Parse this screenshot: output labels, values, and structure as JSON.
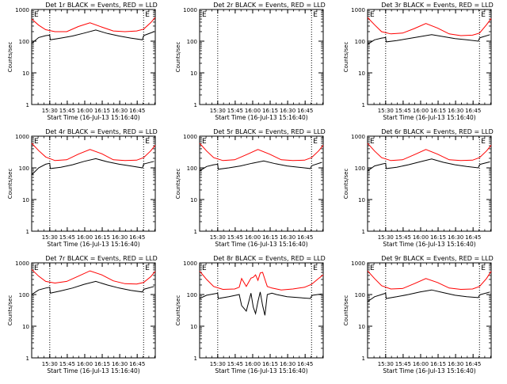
{
  "chart_data": [
    {
      "type": "line",
      "title": "Det 1r BLACK = Events, RED = LLD",
      "xlabel": "Start Time (16-Jul-13 15:16:40)",
      "ylabel": "Counts/sec",
      "ylim": [
        1,
        1000
      ],
      "yscale": "log",
      "y_ticks": [
        "1",
        "10",
        "100",
        "1000"
      ],
      "x_ticks": [
        "15:30",
        "15:45",
        "16:00",
        "16:15",
        "16:30",
        "16:45"
      ],
      "has_data": true,
      "markers": [
        "E",
        "E"
      ],
      "vlines_min": [
        15.5,
        96
      ],
      "series": [
        {
          "name": "BLACK = Events",
          "color": "#000000",
          "x": [
            0,
            6,
            12,
            15.5,
            16,
            25,
            35,
            45,
            55,
            65,
            75,
            85,
            95,
            96,
            97,
            105
          ],
          "y": [
            85,
            130,
            150,
            155,
            110,
            125,
            145,
            180,
            225,
            175,
            145,
            125,
            110,
            150,
            155,
            200
          ]
        },
        {
          "name": "RED = LLD",
          "color": "#ff0000",
          "x": [
            0,
            6,
            12,
            20,
            30,
            40,
            50,
            60,
            70,
            80,
            90,
            96,
            102,
            106
          ],
          "y": [
            500,
            320,
            230,
            200,
            200,
            290,
            380,
            280,
            210,
            200,
            210,
            240,
            380,
            560
          ]
        }
      ]
    },
    {
      "type": "line",
      "title": "Det 2r BLACK = Events, RED = LLD",
      "xlabel": "Start Time (16-Jul-13 15:16:40)",
      "ylabel": "Counts/sec",
      "ylim": [
        1,
        1000
      ],
      "yscale": "log",
      "y_ticks": [
        "1",
        "10",
        "100",
        "1000"
      ],
      "x_ticks": [
        "15:30",
        "15:45",
        "16:00",
        "16:15",
        "16:30",
        "16:45"
      ],
      "has_data": false,
      "markers": [
        "E",
        "E"
      ],
      "vlines_min": [
        15.5,
        96
      ],
      "series": []
    },
    {
      "type": "line",
      "title": "Det 3r BLACK = Events, RED = LLD",
      "xlabel": "Start Time (16-Jul-13 15:16:40)",
      "ylabel": "Counts/sec",
      "ylim": [
        1,
        1000
      ],
      "yscale": "log",
      "y_ticks": [
        "1",
        "10",
        "100",
        "1000"
      ],
      "x_ticks": [
        "15:30",
        "15:45",
        "16:00",
        "16:15",
        "16:30",
        "16:45"
      ],
      "has_data": true,
      "markers": [
        "E",
        "E"
      ],
      "vlines_min": [
        15.5,
        96
      ],
      "series": [
        {
          "name": "BLACK = Events",
          "color": "#000000",
          "x": [
            0,
            6,
            12,
            15.5,
            16,
            25,
            35,
            45,
            55,
            65,
            75,
            85,
            95,
            96,
            97,
            105
          ],
          "y": [
            80,
            110,
            125,
            130,
            95,
            105,
            120,
            140,
            160,
            140,
            120,
            110,
            100,
            125,
            130,
            160
          ]
        },
        {
          "name": "RED = LLD",
          "color": "#ff0000",
          "x": [
            0,
            6,
            12,
            20,
            30,
            40,
            50,
            60,
            70,
            80,
            90,
            96,
            102,
            106
          ],
          "y": [
            560,
            330,
            200,
            170,
            180,
            250,
            360,
            260,
            170,
            150,
            155,
            180,
            330,
            520
          ]
        }
      ]
    },
    {
      "type": "line",
      "title": "Det 4r BLACK = Events, RED = LLD",
      "xlabel": "Start Time (16-Jul-13 15:16:40)",
      "ylabel": "Counts/sec",
      "ylim": [
        1,
        1000
      ],
      "yscale": "log",
      "y_ticks": [
        "1",
        "10",
        "100",
        "1000"
      ],
      "x_ticks": [
        "15:30",
        "15:45",
        "16:00",
        "16:15",
        "16:30",
        "16:45"
      ],
      "has_data": true,
      "markers": [
        "E",
        "E"
      ],
      "vlines_min": [
        15.5,
        96
      ],
      "series": [
        {
          "name": "BLACK = Events",
          "color": "#000000",
          "x": [
            0,
            6,
            12,
            15.5,
            16,
            25,
            35,
            45,
            55,
            65,
            75,
            85,
            95,
            96,
            97,
            105
          ],
          "y": [
            60,
            100,
            130,
            140,
            95,
            105,
            125,
            160,
            195,
            155,
            130,
            115,
            100,
            130,
            135,
            160
          ]
        },
        {
          "name": "RED = LLD",
          "color": "#ff0000",
          "x": [
            0,
            6,
            12,
            20,
            30,
            40,
            50,
            60,
            70,
            80,
            90,
            96,
            102,
            106
          ],
          "y": [
            600,
            350,
            220,
            170,
            180,
            270,
            380,
            280,
            180,
            170,
            175,
            210,
            340,
            520
          ]
        }
      ]
    },
    {
      "type": "line",
      "title": "Det 5r BLACK = Events, RED = LLD",
      "xlabel": "Start Time (16-Jul-13 15:16:40)",
      "ylabel": "Counts/sec",
      "ylim": [
        1,
        1000
      ],
      "yscale": "log",
      "y_ticks": [
        "1",
        "10",
        "100",
        "1000"
      ],
      "x_ticks": [
        "15:30",
        "15:45",
        "16:00",
        "16:15",
        "16:30",
        "16:45"
      ],
      "has_data": true,
      "markers": [
        "E",
        "E"
      ],
      "vlines_min": [
        15.5,
        96
      ],
      "series": [
        {
          "name": "BLACK = Events",
          "color": "#000000",
          "x": [
            0,
            6,
            12,
            15.5,
            16,
            25,
            35,
            45,
            55,
            65,
            75,
            85,
            95,
            96,
            97,
            105
          ],
          "y": [
            80,
            110,
            125,
            130,
            90,
            100,
            115,
            140,
            165,
            135,
            115,
            105,
            95,
            115,
            120,
            150
          ]
        },
        {
          "name": "RED = LLD",
          "color": "#ff0000",
          "x": [
            0,
            6,
            12,
            20,
            30,
            40,
            50,
            60,
            70,
            80,
            90,
            96,
            102,
            106
          ],
          "y": [
            600,
            340,
            210,
            170,
            180,
            260,
            380,
            270,
            180,
            170,
            175,
            210,
            340,
            520
          ]
        }
      ]
    },
    {
      "type": "line",
      "title": "Det 6r BLACK = Events, RED = LLD",
      "xlabel": "Start Time (16-Jul-13 15:16:40)",
      "ylabel": "Counts/sec",
      "ylim": [
        1,
        1000
      ],
      "yscale": "log",
      "y_ticks": [
        "1",
        "10",
        "100",
        "1000"
      ],
      "x_ticks": [
        "15:30",
        "15:45",
        "16:00",
        "16:15",
        "16:30",
        "16:45"
      ],
      "has_data": true,
      "markers": [
        "E",
        "E"
      ],
      "vlines_min": [
        15.5,
        96
      ],
      "series": [
        {
          "name": "BLACK = Events",
          "color": "#000000",
          "x": [
            0,
            6,
            12,
            15.5,
            16,
            25,
            35,
            45,
            55,
            65,
            75,
            85,
            95,
            96,
            97,
            105
          ],
          "y": [
            80,
            115,
            130,
            140,
            95,
            105,
            125,
            155,
            190,
            150,
            125,
            110,
            100,
            125,
            130,
            155
          ]
        },
        {
          "name": "RED = LLD",
          "color": "#ff0000",
          "x": [
            0,
            6,
            12,
            20,
            30,
            40,
            50,
            60,
            70,
            80,
            90,
            96,
            102,
            106
          ],
          "y": [
            600,
            340,
            210,
            170,
            180,
            260,
            380,
            270,
            180,
            170,
            175,
            210,
            340,
            520
          ]
        }
      ]
    },
    {
      "type": "line",
      "title": "Det 7r BLACK = Events, RED = LLD",
      "xlabel": "Start Time (16-Jul-13 15:16:40)",
      "ylabel": "Counts/sec",
      "ylim": [
        1,
        1000
      ],
      "yscale": "log",
      "y_ticks": [
        "1",
        "10",
        "100",
        "1000"
      ],
      "x_ticks": [
        "15:30",
        "15:45",
        "16:00",
        "16:15",
        "16:30",
        "16:45"
      ],
      "has_data": true,
      "markers": [
        "E",
        "E"
      ],
      "vlines_min": [
        15.5,
        96
      ],
      "series": [
        {
          "name": "BLACK = Events",
          "color": "#000000",
          "x": [
            0,
            6,
            12,
            15.5,
            16,
            25,
            35,
            45,
            55,
            65,
            75,
            85,
            95,
            96,
            97,
            105
          ],
          "y": [
            100,
            140,
            160,
            170,
            110,
            130,
            160,
            210,
            260,
            200,
            160,
            135,
            120,
            145,
            150,
            180
          ]
        },
        {
          "name": "RED = LLD",
          "color": "#ff0000",
          "x": [
            0,
            6,
            12,
            20,
            30,
            40,
            50,
            60,
            70,
            80,
            90,
            96,
            102,
            106
          ],
          "y": [
            620,
            380,
            260,
            230,
            260,
            380,
            560,
            420,
            270,
            220,
            215,
            240,
            360,
            540
          ]
        }
      ]
    },
    {
      "type": "line",
      "title": "Det 8r BLACK = Events, RED = LLD",
      "xlabel": "Start Time (16-Jul-13 15:16:40)",
      "ylabel": "Counts/sec",
      "ylim": [
        1,
        1000
      ],
      "yscale": "log",
      "y_ticks": [
        "1",
        "10",
        "100",
        "1000"
      ],
      "x_ticks": [
        "15:30",
        "15:45",
        "16:00",
        "16:15",
        "16:30",
        "16:45"
      ],
      "has_data": true,
      "markers": [
        "E",
        "E"
      ],
      "vlines_min": [
        15.5,
        96
      ],
      "series": [
        {
          "name": "BLACK = Events",
          "color": "#000000",
          "x": [
            0,
            6,
            12,
            15.5,
            16,
            25,
            34,
            36,
            40,
            44,
            46,
            48,
            50,
            52,
            54,
            56,
            58,
            62,
            66,
            75,
            85,
            95,
            96,
            97,
            105
          ],
          "y": [
            75,
            95,
            105,
            110,
            75,
            85,
            100,
            45,
            30,
            110,
            40,
            25,
            60,
            120,
            45,
            22,
            100,
            110,
            100,
            85,
            80,
            75,
            90,
            95,
            105
          ]
        },
        {
          "name": "RED = LLD",
          "color": "#ff0000",
          "x": [
            0,
            6,
            12,
            20,
            30,
            34,
            36,
            40,
            44,
            46,
            48,
            50,
            52,
            54,
            56,
            58,
            62,
            70,
            80,
            90,
            96,
            102,
            106
          ],
          "y": [
            550,
            300,
            180,
            145,
            150,
            170,
            320,
            180,
            330,
            350,
            420,
            280,
            480,
            500,
            300,
            180,
            160,
            140,
            150,
            170,
            210,
            320,
            420
          ]
        }
      ]
    },
    {
      "type": "line",
      "title": "Det 9r BLACK = Events, RED = LLD",
      "xlabel": "Start Time (16-Jul-13 15:16:40)",
      "ylabel": "Counts/sec",
      "ylim": [
        1,
        1000
      ],
      "yscale": "log",
      "y_ticks": [
        "1",
        "10",
        "100",
        "1000"
      ],
      "x_ticks": [
        "15:30",
        "15:45",
        "16:00",
        "16:15",
        "16:30",
        "16:45"
      ],
      "has_data": true,
      "markers": [
        "E",
        "E"
      ],
      "vlines_min": [
        15.5,
        96
      ],
      "series": [
        {
          "name": "BLACK = Events",
          "color": "#000000",
          "x": [
            0,
            6,
            12,
            15.5,
            16,
            25,
            35,
            45,
            55,
            65,
            75,
            85,
            95,
            96,
            97,
            105
          ],
          "y": [
            60,
            85,
            100,
            110,
            75,
            85,
            100,
            120,
            140,
            115,
            95,
            85,
            80,
            95,
            100,
            120
          ]
        },
        {
          "name": "RED = LLD",
          "color": "#ff0000",
          "x": [
            0,
            6,
            12,
            20,
            30,
            40,
            50,
            60,
            70,
            80,
            90,
            96,
            102,
            106
          ],
          "y": [
            560,
            320,
            190,
            150,
            155,
            220,
            320,
            240,
            160,
            145,
            150,
            180,
            320,
            540
          ]
        }
      ]
    }
  ]
}
